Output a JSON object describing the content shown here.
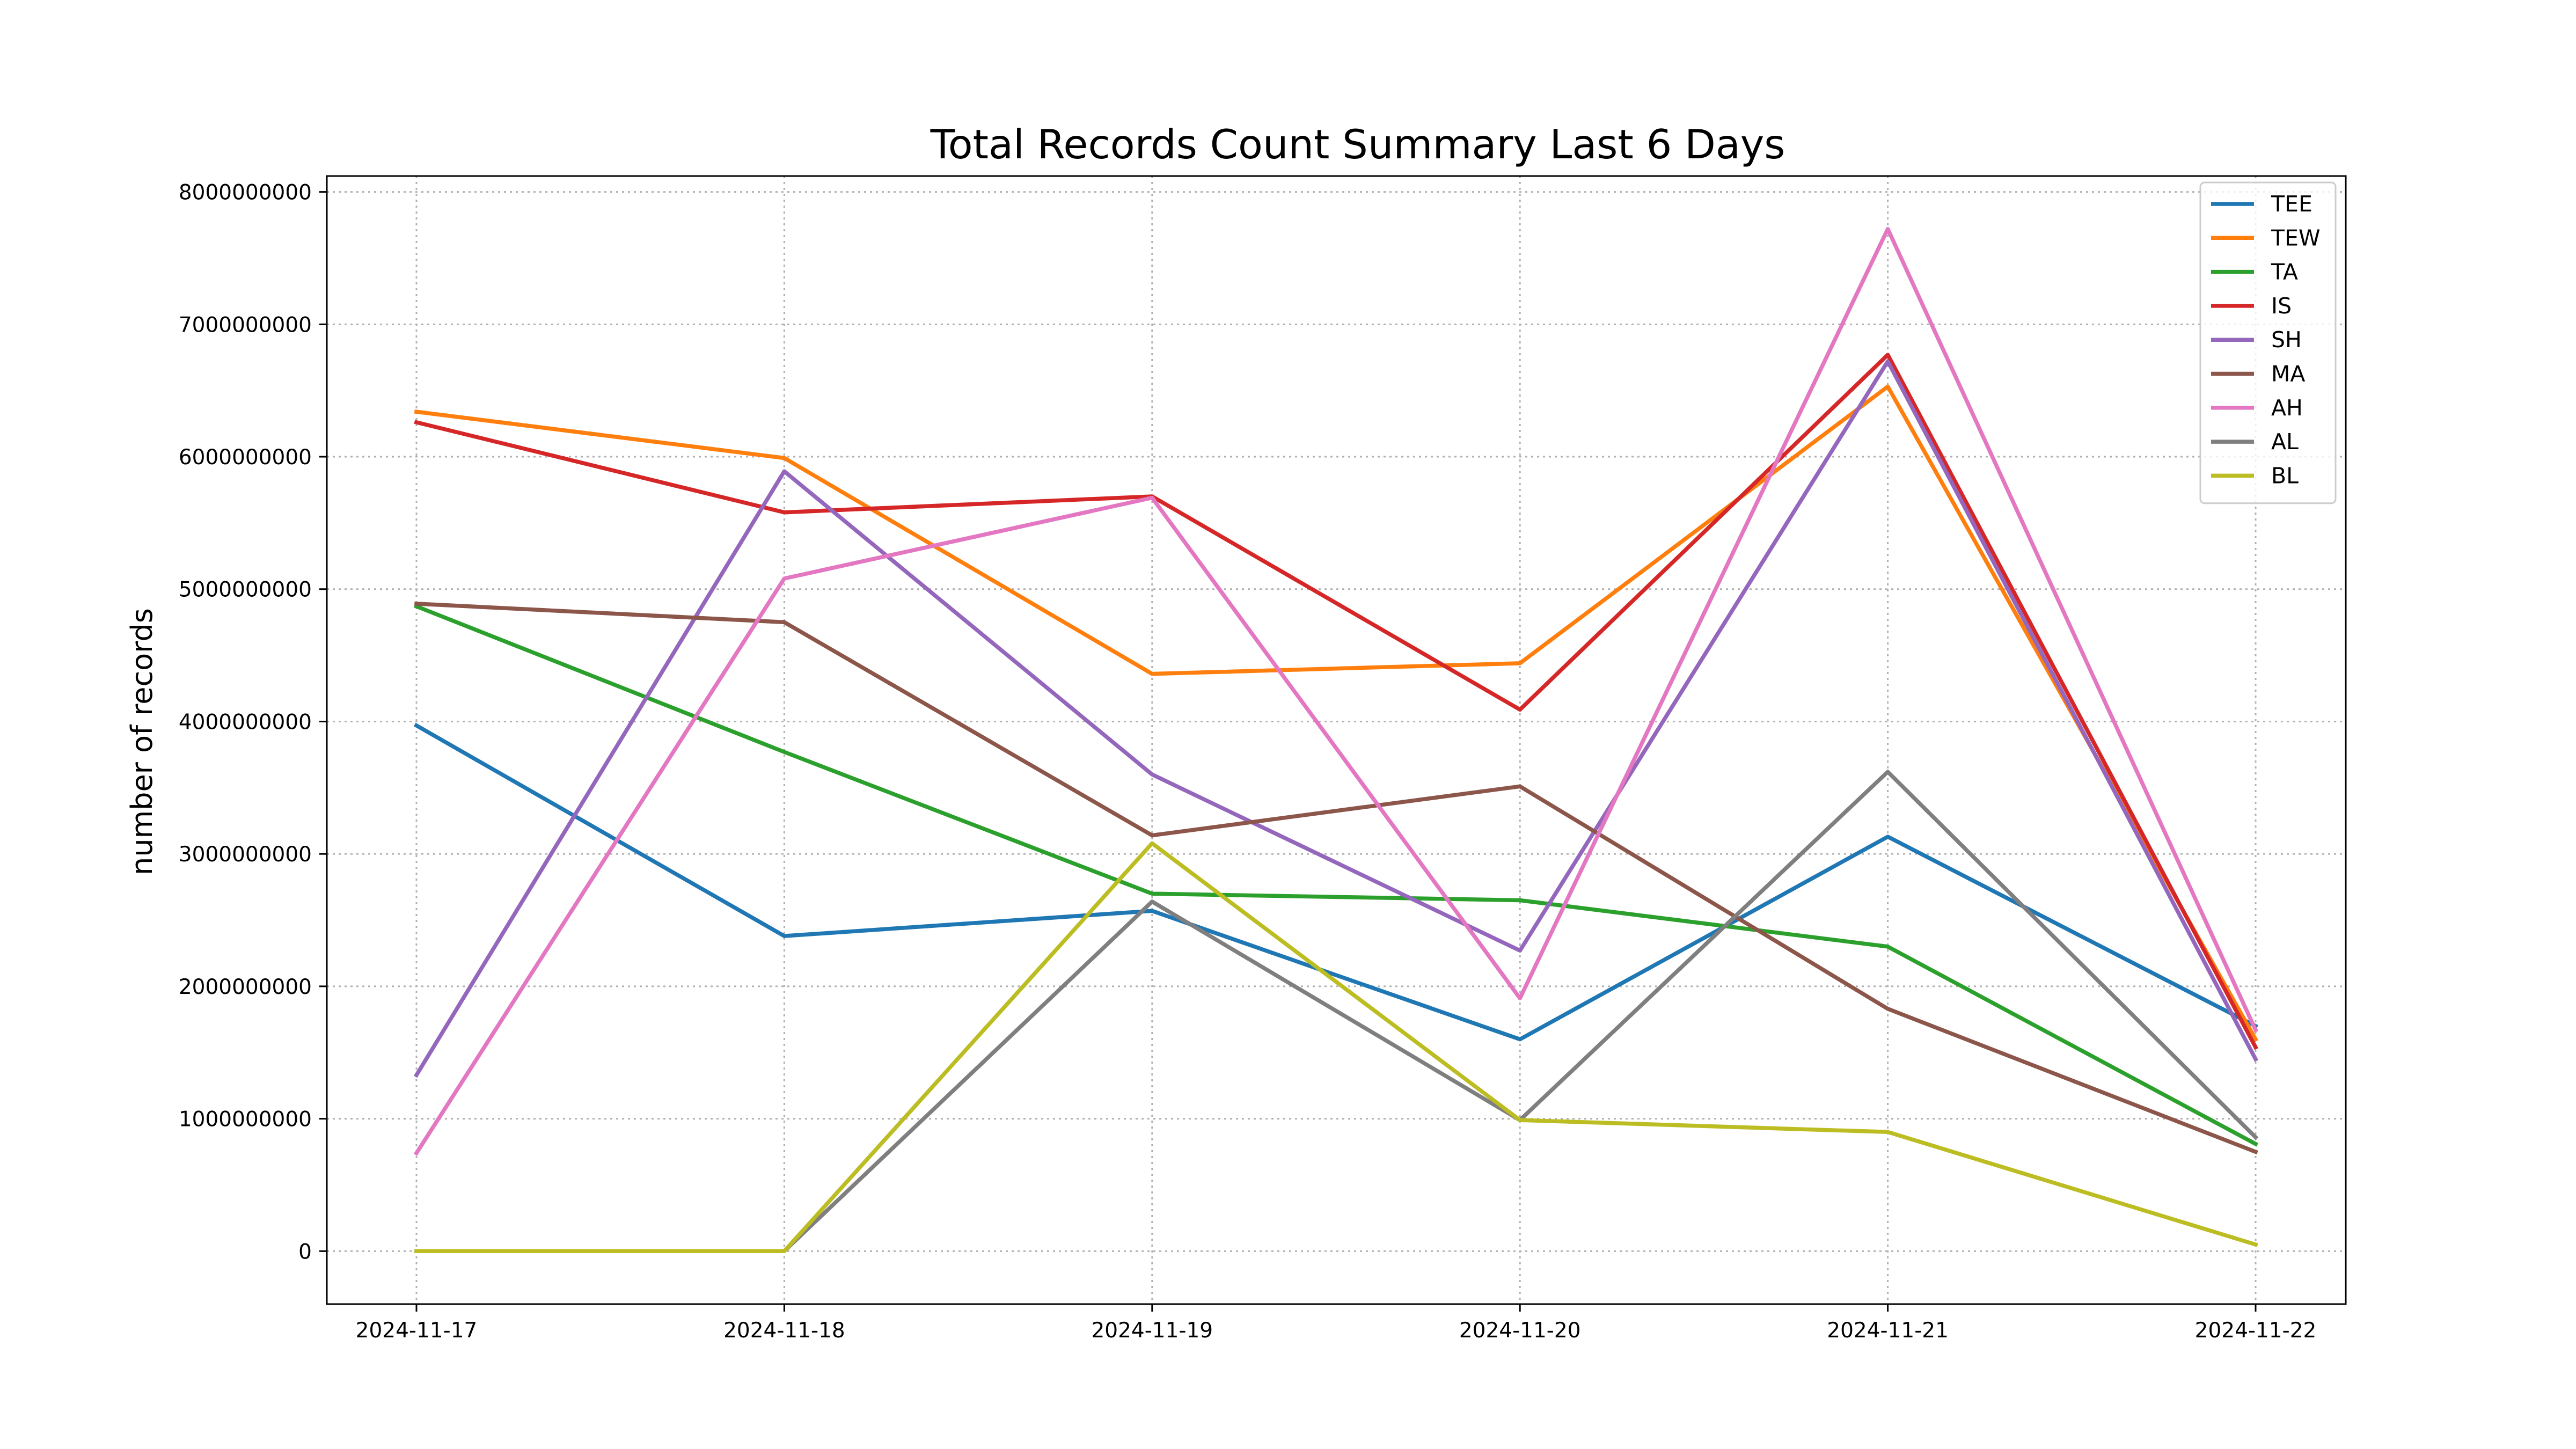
{
  "chart_data": {
    "type": "line",
    "title": "Total Records Count Summary Last 6 Days",
    "xlabel": "",
    "ylabel": "number of records",
    "x": [
      "2024-11-17",
      "2024-11-18",
      "2024-11-19",
      "2024-11-20",
      "2024-11-21",
      "2024-11-22"
    ],
    "ylim": [
      -400000000,
      8120000000
    ],
    "yticks": [
      0,
      1000000000,
      2000000000,
      3000000000,
      4000000000,
      5000000000,
      6000000000,
      7000000000,
      8000000000
    ],
    "ytick_labels": [
      "0",
      "1000000000",
      "2000000000",
      "3000000000",
      "4000000000",
      "5000000000",
      "6000000000",
      "7000000000",
      "8000000000"
    ],
    "grid": true,
    "legend_position": "top-right",
    "series": [
      {
        "name": "TEE",
        "color": "#1f77b4",
        "values": [
          3970000000,
          2380000000,
          2570000000,
          1600000000,
          3130000000,
          1700000000
        ]
      },
      {
        "name": "TEW",
        "color": "#ff7f0e",
        "values": [
          6340000000,
          5990000000,
          4360000000,
          4440000000,
          6530000000,
          1600000000
        ]
      },
      {
        "name": "TA",
        "color": "#2ca02c",
        "values": [
          4870000000,
          3770000000,
          2700000000,
          2650000000,
          2300000000,
          810000000
        ]
      },
      {
        "name": "IS",
        "color": "#d62728",
        "values": [
          6260000000,
          5580000000,
          5700000000,
          4090000000,
          6770000000,
          1540000000
        ]
      },
      {
        "name": "SH",
        "color": "#9467bd",
        "values": [
          1330000000,
          5890000000,
          3600000000,
          2270000000,
          6720000000,
          1450000000
        ]
      },
      {
        "name": "MA",
        "color": "#8c564b",
        "values": [
          4890000000,
          4750000000,
          3140000000,
          3510000000,
          1830000000,
          750000000
        ]
      },
      {
        "name": "AH",
        "color": "#e377c2",
        "values": [
          740000000,
          5080000000,
          5690000000,
          1910000000,
          7720000000,
          1670000000
        ]
      },
      {
        "name": "AL",
        "color": "#7f7f7f",
        "values": [
          0,
          0,
          2640000000,
          990000000,
          3620000000,
          860000000
        ]
      },
      {
        "name": "BL",
        "color": "#bcbd22",
        "values": [
          0,
          0,
          3080000000,
          990000000,
          900000000,
          50000000
        ]
      }
    ]
  }
}
